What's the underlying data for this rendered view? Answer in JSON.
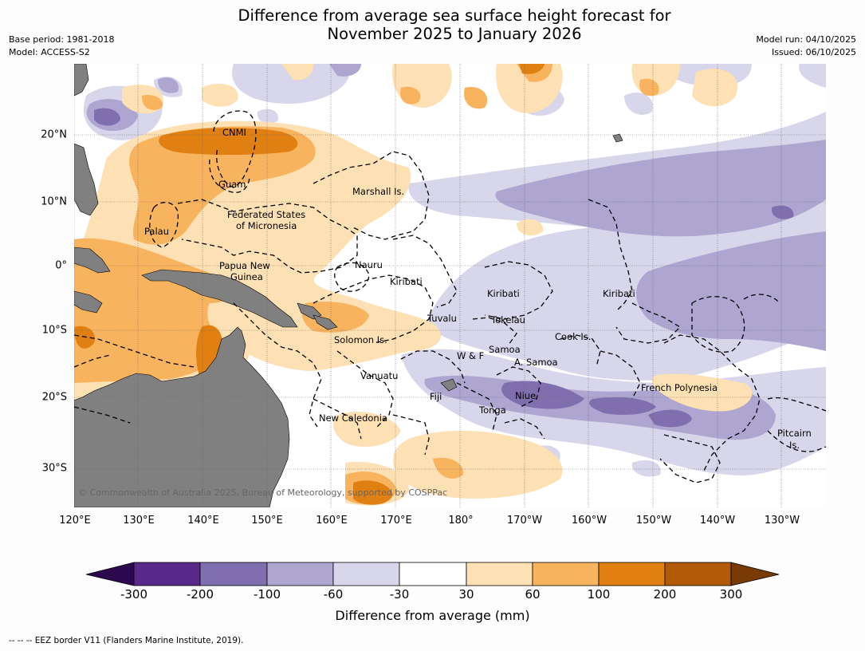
{
  "title_line1": "Difference from average sea surface height forecast for",
  "title_line2": "November 2025 to January 2026",
  "meta_left": [
    "Base period: 1981-2018",
    "Model: ACCESS-S2"
  ],
  "meta_right": [
    "Model run: 04/10/2025",
    "Issued: 06/10/2025"
  ],
  "lon_labels": [
    "120°E",
    "130°E",
    "140°E",
    "150°E",
    "160°E",
    "170°E",
    "180°",
    "170°W",
    "160°W",
    "150°W",
    "140°W",
    "130°W"
  ],
  "lat_labels": [
    "20°N",
    "10°N",
    "0°",
    "10°S",
    "20°S",
    "30°S"
  ],
  "places": {
    "cnmi": "CNMI",
    "guam": "Guam",
    "marshall": "Marshall Is.",
    "fsm1": "Federated States",
    "fsm2": "of Micronesia",
    "palau": "Palau",
    "png1": "Papua New",
    "png2": "Guinea",
    "nauru": "Nauru",
    "kiribati_w": "Kiribati",
    "kiribati_c": "Kiribati",
    "kiribati_e": "Kiribati",
    "tuvalu": "Tuvalu",
    "tokelau": "Tokelau",
    "cook": "Cook Is.",
    "solomon": "Solomon Is.",
    "samoa": "Samoa",
    "wf": "W & F",
    "asamoa": "A. Samoa",
    "vanuatu": "Vanuatu",
    "fiji": "Fiji",
    "niue": "Niue",
    "tonga": "Tonga",
    "frenchpoly": "French Polynesia",
    "newcal": "New Caledonia",
    "pitcairn1": "Pitcairn",
    "pitcairn2": "Is."
  },
  "copyright": "© Commonwealth of Australia 2025, Bureau of Meteorology, supported by COSPPac",
  "colorbar": {
    "ticks": [
      "-300",
      "-200",
      "-100",
      "-60",
      "-30",
      "30",
      "60",
      "100",
      "200",
      "300"
    ],
    "colors": [
      "#2d0a4f",
      "#5a2a8a",
      "#7f6fae",
      "#aea6d1",
      "#d7d6ea",
      "#ffffff",
      "#fde0b3",
      "#f8b35e",
      "#e07f12",
      "#b25a08",
      "#7a3a06"
    ],
    "label": "Difference from average (mm)"
  },
  "footnote": "--  --  -- EEZ border V11 (Flanders Marine Institute, 2019)."
}
